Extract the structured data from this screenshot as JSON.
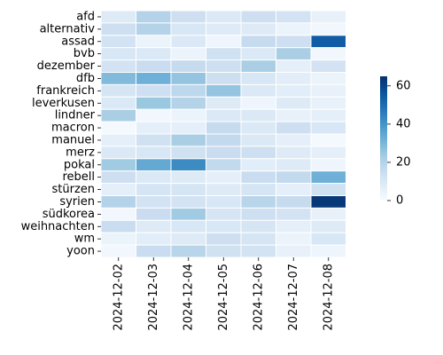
{
  "chart_data": {
    "type": "heatmap",
    "title": "",
    "xlabel": "",
    "ylabel": "",
    "x_categories": [
      "2024-12-02",
      "2024-12-03",
      "2024-12-04",
      "2024-12-05",
      "2024-12-06",
      "2024-12-07",
      "2024-12-08"
    ],
    "y_categories": [
      "afd",
      "alternativ",
      "assad",
      "bvb",
      "dezember",
      "dfb",
      "frankreich",
      "leverkusen",
      "lindner",
      "macron",
      "manuel",
      "merz",
      "pokal",
      "rebell",
      "stürzen",
      "syrien",
      "südkorea",
      "weihnachten",
      "wm",
      "yoon"
    ],
    "values": [
      [
        8,
        20,
        14,
        9,
        14,
        12,
        5
      ],
      [
        14,
        20,
        10,
        8,
        8,
        4,
        2
      ],
      [
        12,
        4,
        9,
        3,
        16,
        14,
        54
      ],
      [
        10,
        9,
        4,
        13,
        9,
        22,
        2
      ],
      [
        12,
        15,
        16,
        14,
        22,
        6,
        12
      ],
      [
        29,
        32,
        26,
        14,
        10,
        7,
        4
      ],
      [
        11,
        14,
        18,
        26,
        9,
        7,
        5
      ],
      [
        9,
        25,
        20,
        8,
        3,
        8,
        5
      ],
      [
        22,
        2,
        4,
        9,
        9,
        5,
        6
      ],
      [
        1,
        6,
        6,
        16,
        9,
        14,
        10
      ],
      [
        6,
        13,
        22,
        17,
        9,
        6,
        1
      ],
      [
        9,
        10,
        13,
        15,
        14,
        8,
        6
      ],
      [
        24,
        34,
        42,
        17,
        7,
        8,
        3
      ],
      [
        14,
        9,
        8,
        6,
        15,
        17,
        32
      ],
      [
        6,
        11,
        11,
        8,
        11,
        6,
        13
      ],
      [
        20,
        12,
        12,
        10,
        19,
        16,
        63
      ],
      [
        2,
        15,
        24,
        11,
        14,
        12,
        5
      ],
      [
        15,
        8,
        10,
        10,
        11,
        6,
        8
      ],
      [
        4,
        7,
        8,
        14,
        11,
        4,
        10
      ],
      [
        2,
        15,
        19,
        13,
        12,
        5,
        3
      ]
    ],
    "vmin": 0,
    "vmax": 65,
    "colorbar_ticks": [
      0,
      20,
      40,
      60
    ],
    "colormap": "Blues",
    "cell_border_color": "#ffffff",
    "grid": false,
    "legend": "colorbar-right"
  }
}
